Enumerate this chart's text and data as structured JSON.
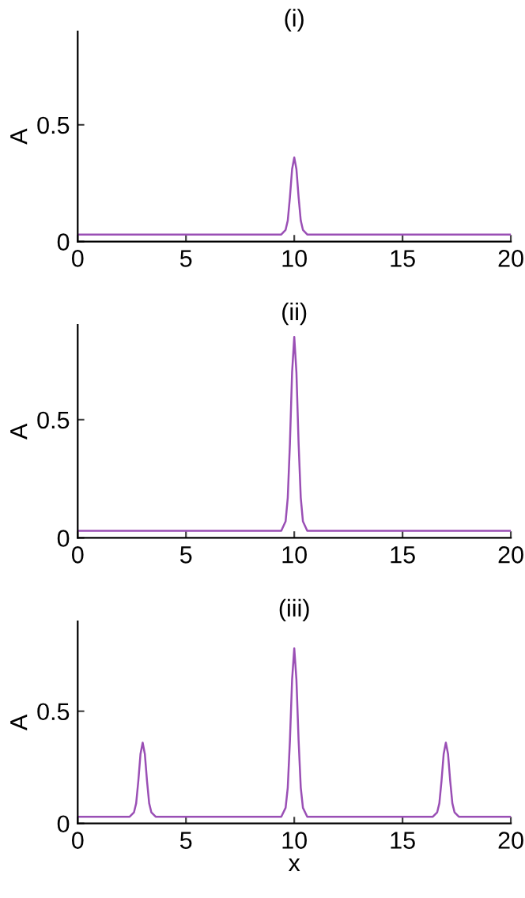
{
  "chart_data": [
    {
      "type": "line",
      "title": "(i)",
      "ylabel": "A",
      "xlim": [
        0,
        20
      ],
      "ylim": [
        0,
        0.9
      ],
      "xticks": [
        0,
        5,
        10,
        15,
        20
      ],
      "yticks": [
        0,
        0.5
      ],
      "grid": false,
      "legend": false,
      "marker": "none",
      "line_style": "solid",
      "x": [
        0,
        9.4,
        9.6,
        9.7,
        9.8,
        9.9,
        10,
        10.1,
        10.2,
        10.3,
        10.4,
        10.6,
        20
      ],
      "series": [
        {
          "color": "#9a4fb5",
          "values": [
            0.03,
            0.03,
            0.05,
            0.09,
            0.19,
            0.31,
            0.36,
            0.31,
            0.19,
            0.09,
            0.05,
            0.03,
            0.03
          ]
        }
      ]
    },
    {
      "type": "line",
      "title": "(ii)",
      "ylabel": "A",
      "xlim": [
        0,
        20
      ],
      "ylim": [
        0,
        0.9
      ],
      "xticks": [
        0,
        5,
        10,
        15,
        20
      ],
      "yticks": [
        0,
        0.5
      ],
      "grid": false,
      "legend": false,
      "marker": "none",
      "line_style": "solid",
      "x": [
        0,
        9.4,
        9.6,
        9.7,
        9.8,
        9.9,
        10,
        10.1,
        10.2,
        10.3,
        10.4,
        10.6,
        20
      ],
      "series": [
        {
          "color": "#9a4fb5",
          "values": [
            0.03,
            0.03,
            0.07,
            0.17,
            0.4,
            0.7,
            0.85,
            0.7,
            0.4,
            0.17,
            0.07,
            0.03,
            0.03
          ]
        }
      ]
    },
    {
      "type": "line",
      "title": "(iii)",
      "xlabel": "x",
      "ylabel": "A",
      "xlim": [
        0,
        20
      ],
      "ylim": [
        0,
        0.9
      ],
      "xticks": [
        0,
        5,
        10,
        15,
        20
      ],
      "yticks": [
        0,
        0.5
      ],
      "grid": false,
      "legend": false,
      "marker": "none",
      "line_style": "solid",
      "x": [
        0,
        2.4,
        2.6,
        2.7,
        2.8,
        2.9,
        3,
        3.1,
        3.2,
        3.3,
        3.4,
        3.6,
        9.4,
        9.6,
        9.7,
        9.8,
        9.9,
        10,
        10.1,
        10.2,
        10.3,
        10.4,
        10.6,
        16.4,
        16.6,
        16.7,
        16.8,
        16.9,
        17,
        17.1,
        17.2,
        17.3,
        17.4,
        17.6,
        20
      ],
      "series": [
        {
          "color": "#9a4fb5",
          "values": [
            0.03,
            0.03,
            0.05,
            0.09,
            0.19,
            0.31,
            0.36,
            0.31,
            0.19,
            0.09,
            0.05,
            0.03,
            0.03,
            0.07,
            0.16,
            0.37,
            0.64,
            0.78,
            0.64,
            0.37,
            0.16,
            0.07,
            0.03,
            0.03,
            0.05,
            0.09,
            0.19,
            0.31,
            0.36,
            0.31,
            0.19,
            0.09,
            0.05,
            0.03,
            0.03
          ]
        }
      ]
    }
  ]
}
